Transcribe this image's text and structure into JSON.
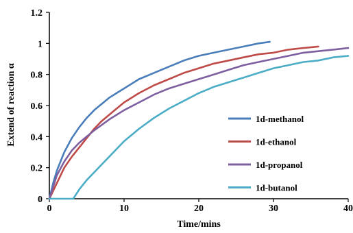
{
  "chart_data": {
    "type": "line",
    "title": "",
    "xlabel": "Time/mins",
    "ylabel": "Extend of reaction α",
    "xlim": [
      0,
      40
    ],
    "ylim": [
      0,
      1.2
    ],
    "x_ticks": [
      0,
      10,
      20,
      30,
      40
    ],
    "y_ticks": [
      0,
      0.2,
      0.4,
      0.6,
      0.8,
      1,
      1.2
    ],
    "x_tick_labels": [
      "0",
      "10",
      "20",
      "30",
      "40"
    ],
    "y_tick_labels": [
      "0",
      "0.2",
      "0.4",
      "0.6",
      "0.8",
      "1",
      "1.2"
    ],
    "grid": false,
    "legend_position": "right",
    "series": [
      {
        "name": "1d-methanol",
        "color": "#4a7ebb",
        "x": [
          0,
          0.5,
          1,
          2,
          3,
          4,
          5,
          6,
          7,
          8,
          9,
          10,
          12,
          14,
          16,
          18,
          20,
          22,
          24,
          26,
          28,
          29.5
        ],
        "y": [
          0,
          0.1,
          0.18,
          0.3,
          0.39,
          0.46,
          0.52,
          0.57,
          0.61,
          0.65,
          0.68,
          0.71,
          0.77,
          0.81,
          0.85,
          0.89,
          0.92,
          0.94,
          0.96,
          0.98,
          1.0,
          1.01
        ]
      },
      {
        "name": "1d-ethanol",
        "color": "#be4b48",
        "x": [
          0,
          1,
          2,
          3,
          4,
          5,
          6,
          7,
          8,
          9,
          10,
          12,
          14,
          16,
          18,
          20,
          22,
          24,
          26,
          28,
          30,
          32,
          34,
          36
        ],
        "y": [
          0,
          0.1,
          0.2,
          0.27,
          0.33,
          0.39,
          0.45,
          0.5,
          0.54,
          0.58,
          0.62,
          0.68,
          0.73,
          0.77,
          0.81,
          0.84,
          0.87,
          0.89,
          0.91,
          0.93,
          0.94,
          0.96,
          0.97,
          0.98
        ]
      },
      {
        "name": "1d-propanol",
        "color": "#7d5fa0",
        "x": [
          0,
          1,
          2,
          3,
          4,
          5,
          6,
          8,
          10,
          12,
          14,
          16,
          18,
          20,
          22,
          24,
          26,
          28,
          30,
          32,
          34,
          36,
          38,
          40
        ],
        "y": [
          0,
          0.15,
          0.24,
          0.31,
          0.36,
          0.4,
          0.44,
          0.51,
          0.57,
          0.62,
          0.67,
          0.71,
          0.74,
          0.77,
          0.8,
          0.83,
          0.86,
          0.88,
          0.9,
          0.92,
          0.94,
          0.95,
          0.96,
          0.97
        ]
      },
      {
        "name": "1d-butanol",
        "color": "#4bacc6",
        "x": [
          0,
          3.2,
          4,
          5,
          6,
          7,
          8,
          10,
          12,
          14,
          16,
          18,
          20,
          22,
          24,
          26,
          28,
          30,
          32,
          34,
          36,
          38,
          40
        ],
        "y": [
          0,
          0,
          0.06,
          0.12,
          0.17,
          0.22,
          0.27,
          0.37,
          0.45,
          0.52,
          0.58,
          0.63,
          0.68,
          0.72,
          0.75,
          0.78,
          0.81,
          0.84,
          0.86,
          0.88,
          0.89,
          0.91,
          0.92
        ]
      }
    ]
  }
}
